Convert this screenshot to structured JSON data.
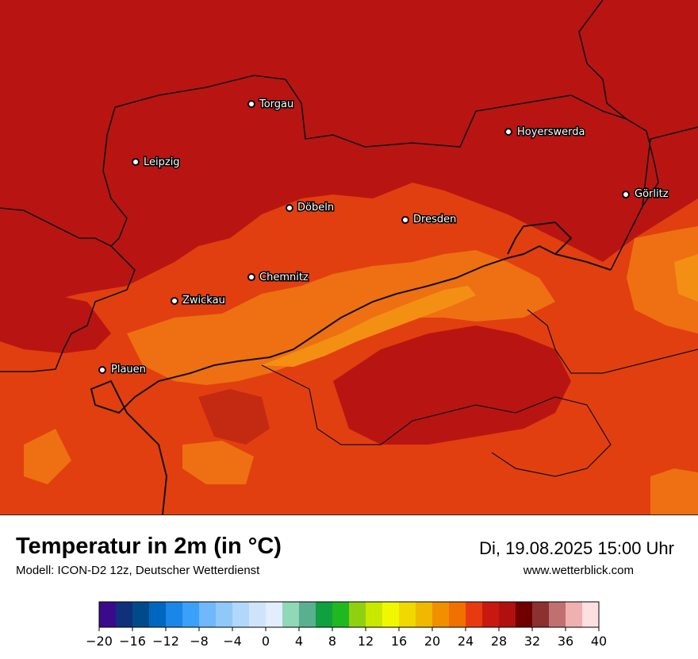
{
  "map": {
    "cities": [
      {
        "name": "Torgau"
      },
      {
        "name": "Leipzig"
      },
      {
        "name": "Hoyerswerda"
      },
      {
        "name": "Görlitz"
      },
      {
        "name": "Döbeln"
      },
      {
        "name": "Dresden"
      },
      {
        "name": "Chemnitz"
      },
      {
        "name": "Zwickau"
      },
      {
        "name": "Plauen"
      }
    ]
  },
  "footer": {
    "title": "Temperatur in 2m (in °C)",
    "model": "Modell: ICON-D2 12z, Deutscher Wetterdienst",
    "datetime": "Di, 19.08.2025 15:00 Uhr",
    "website": "www.wetterblick.com"
  },
  "legend": {
    "ticks": [
      "−20",
      "−16",
      "−12",
      "−8",
      "−4",
      "0",
      "4",
      "8",
      "12",
      "16",
      "20",
      "24",
      "28",
      "32",
      "36",
      "40"
    ],
    "colors": [
      "#3a0a8c",
      "#10307c",
      "#004a8c",
      "#0066c0",
      "#1a86e8",
      "#3aa0f8",
      "#70b8fa",
      "#90c8f8",
      "#b0d8fa",
      "#cfe4fc",
      "#e0eefe",
      "#90d8b8",
      "#58b090",
      "#10a040",
      "#20b820",
      "#90d010",
      "#c8e800",
      "#f0f800",
      "#f0d800",
      "#f0b800",
      "#f09000",
      "#f07000",
      "#e83a10",
      "#c81810",
      "#b01010",
      "#700000",
      "#8c3030",
      "#c07070",
      "#f0b0b0",
      "#ffe0e0"
    ]
  }
}
